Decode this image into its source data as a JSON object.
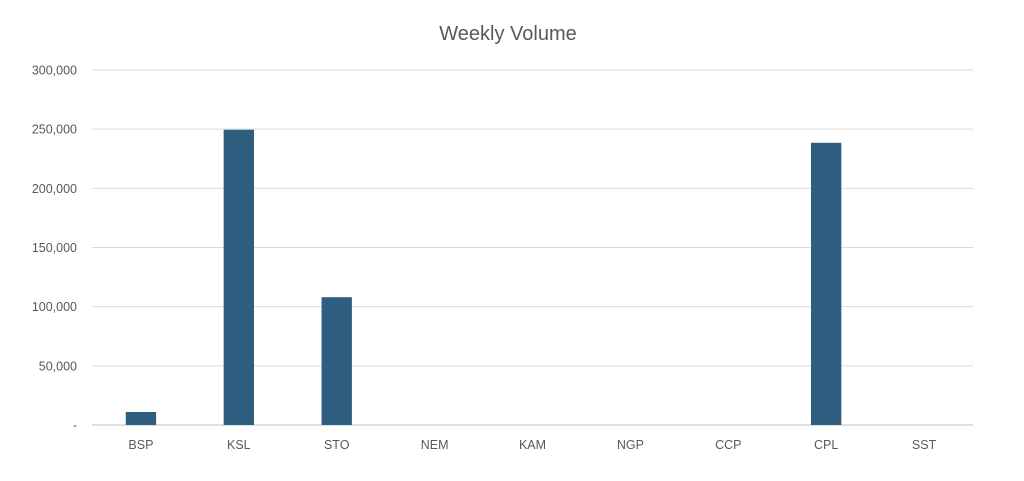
{
  "chart_data": {
    "type": "bar",
    "title": "Weekly Volume",
    "xlabel": "",
    "ylabel": "",
    "categories": [
      "BSP",
      "KSL",
      "STO",
      "NEM",
      "KAM",
      "NGP",
      "CCP",
      "CPL",
      "SST"
    ],
    "values": [
      11000,
      249500,
      108000,
      0,
      0,
      0,
      0,
      238500,
      0
    ],
    "ylim": [
      0,
      300000
    ],
    "yticks": [
      0,
      50000,
      100000,
      150000,
      200000,
      250000,
      300000
    ],
    "ytick_labels": [
      "-",
      "50,000",
      "100,000",
      "150,000",
      "200,000",
      "250,000",
      "300,000"
    ],
    "grid": true,
    "legend": "none",
    "bar_color": "#2e5f80",
    "grid_color": "#d9d9d9",
    "text_color": "#595959"
  }
}
